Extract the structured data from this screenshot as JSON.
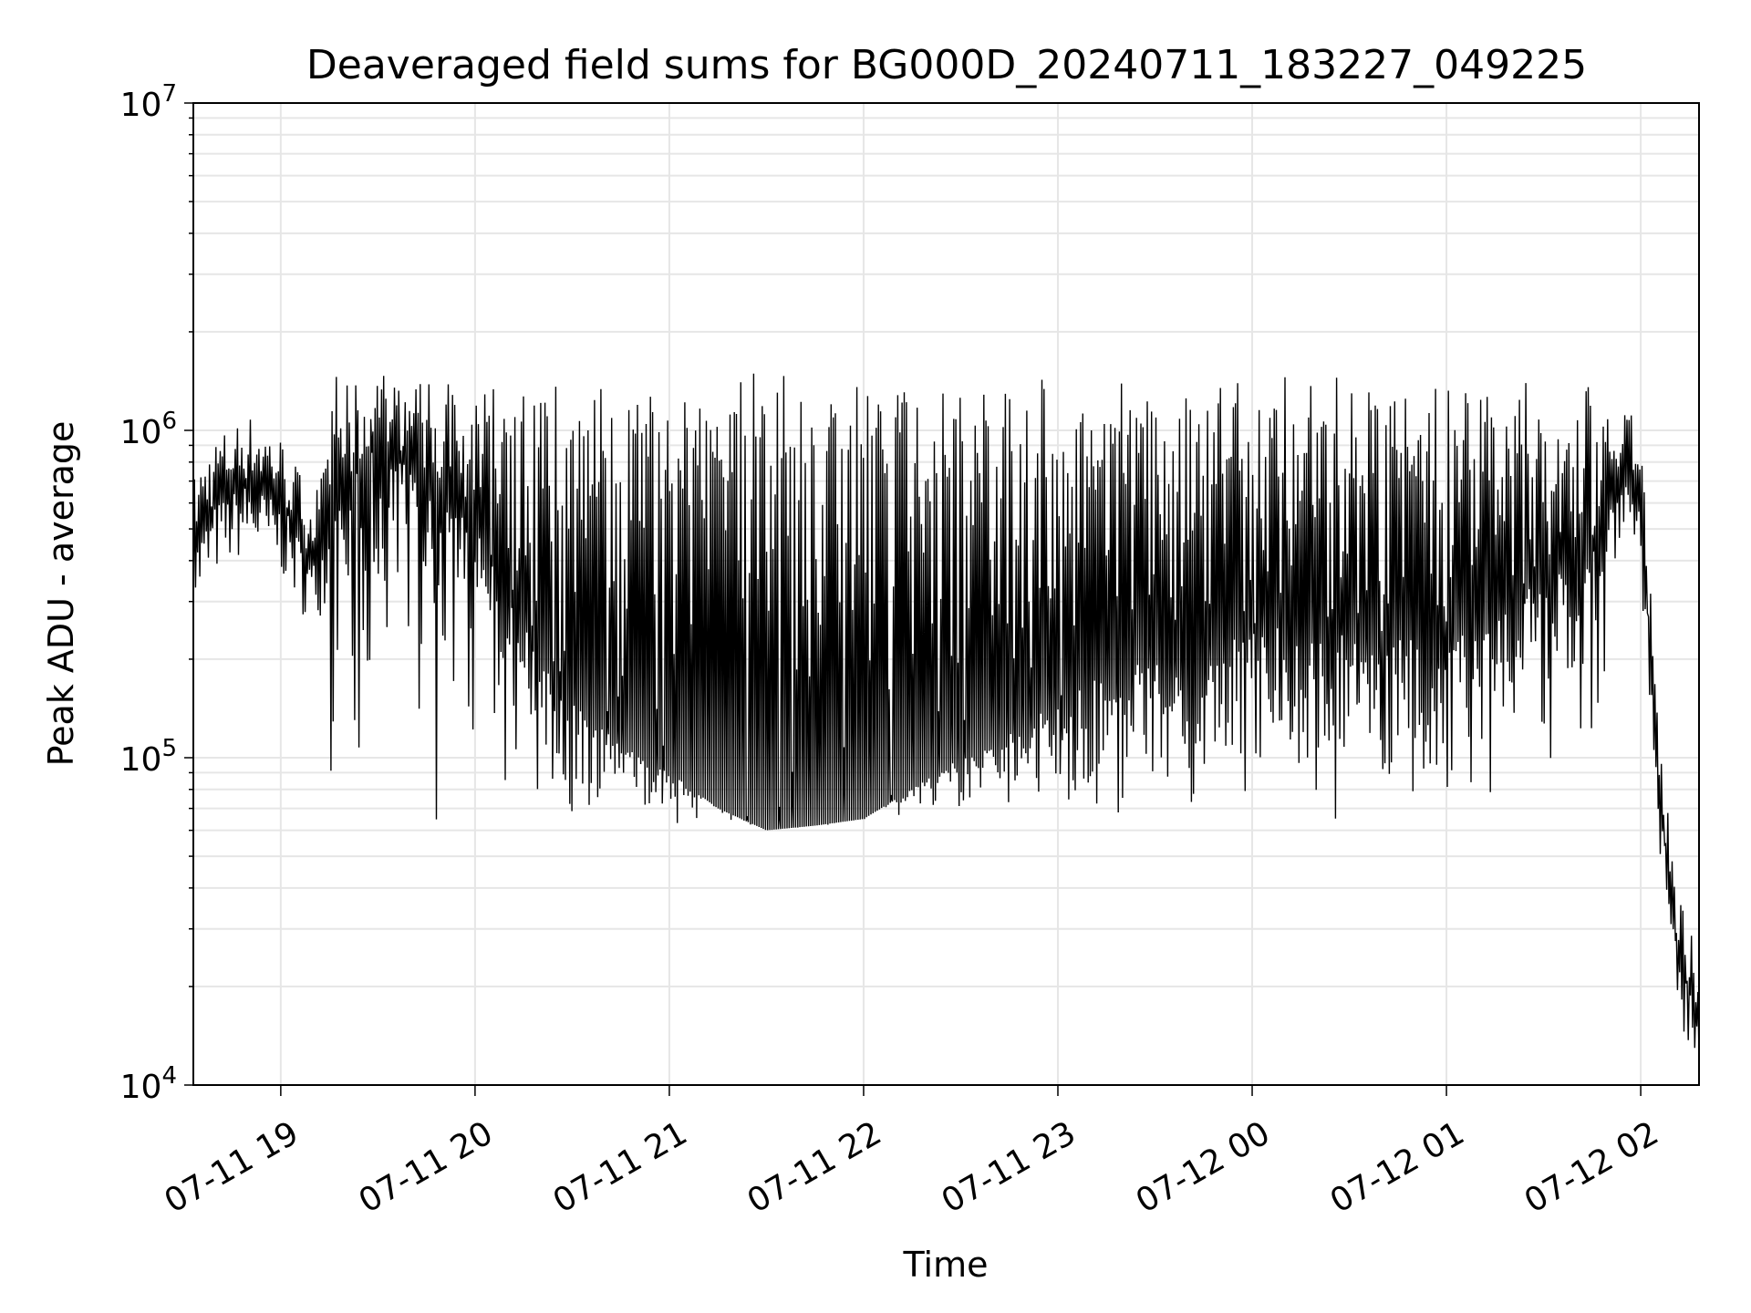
{
  "chart_data": {
    "type": "line",
    "title": "Deaveraged field sums for BG000D_20240711_183227_049225",
    "xlabel": "Time",
    "ylabel": "Peak ADU - average",
    "yscale": "log",
    "ylim": [
      10000,
      10000000
    ],
    "xlim": [
      "2024-07-11T18:33",
      "2024-07-12T02:18"
    ],
    "grid": true,
    "y_ticks": [
      {
        "base": "10",
        "exp": "4"
      },
      {
        "base": "10",
        "exp": "5"
      },
      {
        "base": "10",
        "exp": "6"
      },
      {
        "base": "10",
        "exp": "7"
      }
    ],
    "x_ticks": [
      "07-11 19",
      "07-11 20",
      "07-11 21",
      "07-11 22",
      "07-11 23",
      "07-12 00",
      "07-12 01",
      "07-12 02"
    ],
    "series": [
      {
        "color": "#000000",
        "x": [
          "2024-07-11T18:33",
          "2024-07-11T18:40",
          "2024-07-11T18:50",
          "2024-07-11T19:00",
          "2024-07-11T19:10",
          "2024-07-11T19:20",
          "2024-07-11T19:30",
          "2024-07-11T19:40",
          "2024-07-11T19:50",
          "2024-07-11T20:00",
          "2024-07-11T20:15",
          "2024-07-11T20:30",
          "2024-07-11T20:45",
          "2024-07-11T21:00",
          "2024-07-11T21:15",
          "2024-07-11T21:30",
          "2024-07-11T21:45",
          "2024-07-11T22:00",
          "2024-07-11T22:15",
          "2024-07-11T22:30",
          "2024-07-11T22:45",
          "2024-07-11T23:00",
          "2024-07-11T23:15",
          "2024-07-11T23:30",
          "2024-07-11T23:45",
          "2024-07-12T00:00",
          "2024-07-12T00:15",
          "2024-07-12T00:30",
          "2024-07-12T00:45",
          "2024-07-12T01:00",
          "2024-07-12T01:15",
          "2024-07-12T01:30",
          "2024-07-12T01:45",
          "2024-07-12T01:55",
          "2024-07-12T02:00",
          "2024-07-12T02:05",
          "2024-07-12T02:10",
          "2024-07-12T02:18"
        ],
        "y": [
          450000,
          600000,
          700000,
          600000,
          400000,
          700000,
          900000,
          800000,
          700000,
          500000,
          250000,
          150000,
          110000,
          90000,
          70000,
          60000,
          62000,
          65000,
          80000,
          100000,
          120000,
          150000,
          180000,
          200000,
          220000,
          250000,
          260000,
          250000,
          240000,
          220000,
          280000,
          350000,
          450000,
          800000,
          600000,
          100000,
          30000,
          15000
        ]
      }
    ]
  }
}
